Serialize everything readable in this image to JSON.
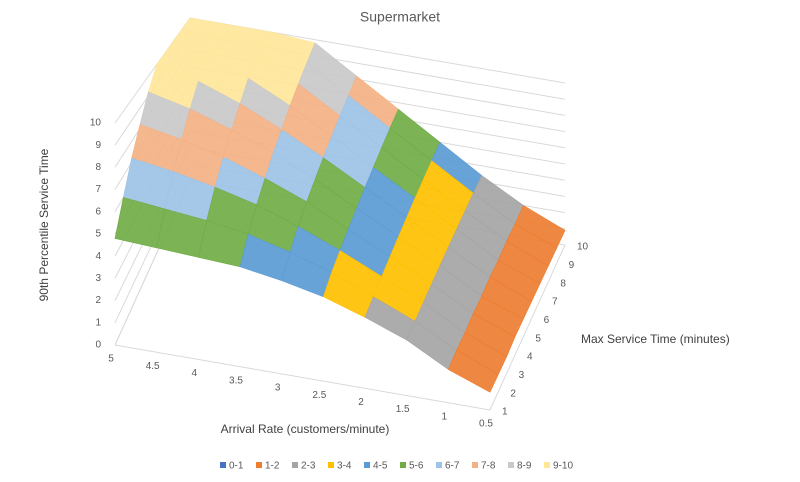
{
  "chart_data": {
    "type": "surface",
    "title": "Supermarket",
    "x_label": "Arrival Rate (customers/minute)",
    "y_label": "Max Service Time (minutes)",
    "z_label": "90th Percentile Service Time",
    "x": [
      0.5,
      1,
      1.5,
      2,
      2.5,
      3,
      3.5,
      4,
      4.5,
      5
    ],
    "y": [
      1,
      2,
      3,
      4,
      5,
      6,
      7,
      8,
      9,
      10
    ],
    "values": [
      [
        0.8,
        1.5,
        2.5,
        3.2,
        3.8,
        4.2,
        4.5,
        4.6,
        4.7,
        4.8
      ],
      [
        0.8,
        1.6,
        2.6,
        3.4,
        4.2,
        4.8,
        5.3,
        5.6,
        5.8,
        6.0
      ],
      [
        0.8,
        1.6,
        2.7,
        3.6,
        4.5,
        5.3,
        6.0,
        6.5,
        6.9,
        7.2
      ],
      [
        0.9,
        1.7,
        2.8,
        3.8,
        4.8,
        5.8,
        6.6,
        7.3,
        7.8,
        8.2
      ],
      [
        0.9,
        1.7,
        2.9,
        4.0,
        5.1,
        6.2,
        7.2,
        8.0,
        8.7,
        9.2
      ],
      [
        0.9,
        1.8,
        3.0,
        4.2,
        5.4,
        6.6,
        7.7,
        8.7,
        9.5,
        10
      ],
      [
        0.9,
        1.8,
        3.1,
        4.4,
        5.7,
        7.0,
        8.3,
        9.4,
        10,
        10
      ],
      [
        0.9,
        1.9,
        3.2,
        4.6,
        6.0,
        7.4,
        8.8,
        10,
        10,
        10
      ],
      [
        0.9,
        1.9,
        3.3,
        4.8,
        6.3,
        7.8,
        9.3,
        10,
        10,
        10
      ],
      [
        0.9,
        2.0,
        3.4,
        5.0,
        6.6,
        8.2,
        9.8,
        10,
        10,
        10
      ]
    ],
    "zlim": [
      0,
      10
    ],
    "zticks": [
      0,
      1,
      2,
      3,
      4,
      5,
      6,
      7,
      8,
      9,
      10
    ],
    "bands": [
      {
        "name": "0-1",
        "color": "#4472c4"
      },
      {
        "name": "1-2",
        "color": "#ed7d31"
      },
      {
        "name": "2-3",
        "color": "#a5a5a5"
      },
      {
        "name": "3-4",
        "color": "#ffc000"
      },
      {
        "name": "4-5",
        "color": "#5b9bd5"
      },
      {
        "name": "5-6",
        "color": "#70ad47"
      },
      {
        "name": "6-7",
        "color": "#9dc3e6"
      },
      {
        "name": "7-8",
        "color": "#f4b183"
      },
      {
        "name": "8-9",
        "color": "#c9c9c9"
      },
      {
        "name": "9-10",
        "color": "#ffe699"
      }
    ]
  }
}
